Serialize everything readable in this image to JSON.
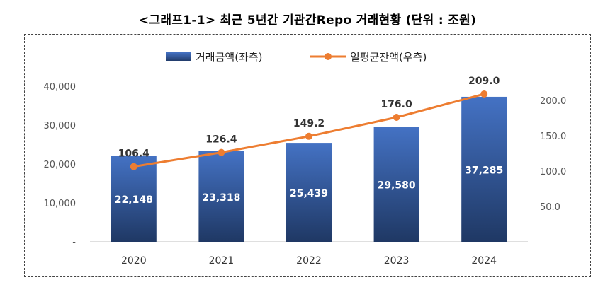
{
  "title": "<그래프1-1> 최근 5년간 기관간Repo 거래현황 (단위 : 조원)",
  "colors": {
    "bar_top": "#4472C4",
    "bar_bottom": "#1F3864",
    "line": "#ED7D31",
    "axis": "#BFBFBF"
  },
  "chart_data": {
    "type": "bar",
    "categories": [
      "2020",
      "2021",
      "2022",
      "2023",
      "2024"
    ],
    "series": [
      {
        "name": "거래금액(좌측)",
        "type": "bar",
        "axis": "left",
        "values": [
          22148,
          23318,
          25439,
          29580,
          37285
        ],
        "labels": [
          "22,148",
          "23,318",
          "25,439",
          "29,580",
          "37,285"
        ]
      },
      {
        "name": "일평균잔액(우측)",
        "type": "line",
        "axis": "right",
        "values": [
          106.4,
          126.4,
          149.2,
          176.0,
          209.0
        ],
        "labels": [
          "106.4",
          "126.4",
          "149.2",
          "176.0",
          "209.0"
        ]
      }
    ],
    "left_axis": {
      "ylim": [
        0,
        40000
      ],
      "ticks": [
        "-",
        "10,000",
        "20,000",
        "30,000",
        "40,000"
      ]
    },
    "right_axis": {
      "ylim": [
        0,
        200
      ],
      "ticks": [
        "50.0",
        "100.0",
        "150.0",
        "200.0"
      ]
    },
    "legend_position": "top",
    "grid": false
  }
}
